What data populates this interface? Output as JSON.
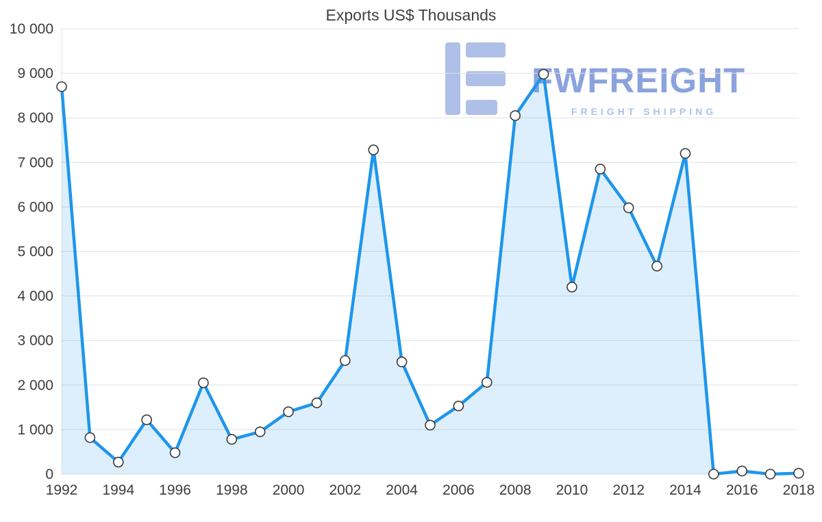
{
  "chart_data": {
    "type": "area",
    "title": "Exports US$ Thousands",
    "xlabel": "",
    "ylabel": "",
    "x": [
      1992,
      1993,
      1994,
      1995,
      1996,
      1997,
      1998,
      1999,
      2000,
      2001,
      2002,
      2003,
      2004,
      2005,
      2006,
      2007,
      2008,
      2009,
      2010,
      2011,
      2012,
      2013,
      2014,
      2015,
      2016,
      2017,
      2018
    ],
    "values": [
      8700,
      820,
      270,
      1220,
      480,
      2050,
      780,
      950,
      1400,
      1600,
      2550,
      7280,
      2520,
      1100,
      1530,
      2060,
      8050,
      8980,
      4200,
      6850,
      5980,
      4670,
      7200,
      0,
      70,
      0,
      20
    ],
    "ylim": [
      0,
      10000
    ],
    "ytick_step": 1000,
    "xtick_step": 2,
    "grid": true,
    "legend_position": "none",
    "line_color": "#1e96eb",
    "area_fill": "rgba(30,150,235,0.15)",
    "marker_fill": "#ffffff",
    "marker_stroke": "#3a3a3a",
    "grid_color": "#e1e1e1",
    "label_color": "#3d3d3d"
  },
  "watermark": {
    "brand": "FWFREIGHT",
    "tagline": "FREIGHT SHIPPING",
    "brand_color": "#8ba3dd",
    "tagline_color": "#aac3ec",
    "logo_color": "#93abe0",
    "logo_name": "fwfreight-logo"
  }
}
